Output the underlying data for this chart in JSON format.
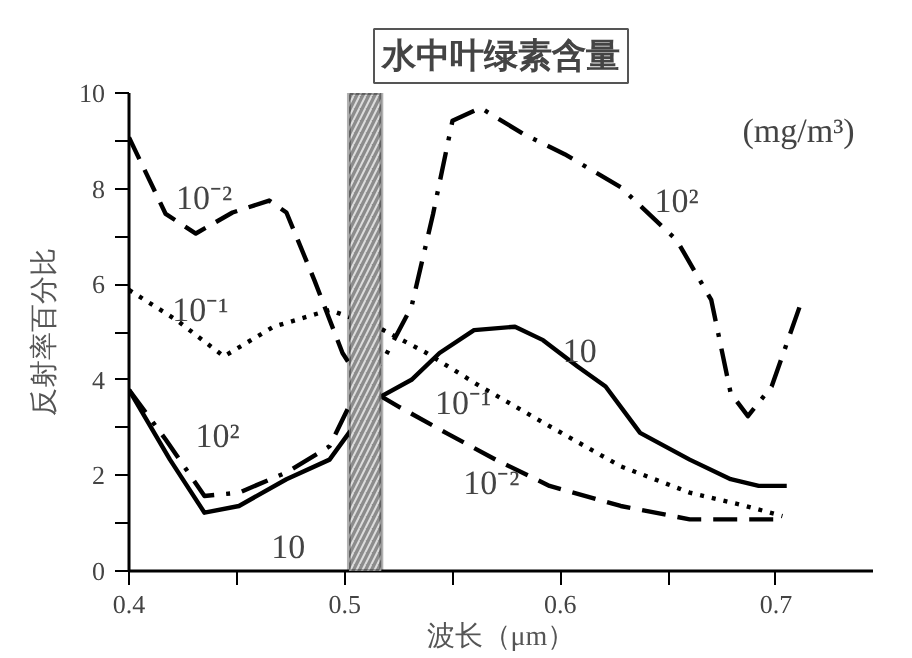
{
  "chart_data": {
    "type": "line",
    "title": "水中叶绿素含量",
    "xlabel": "波长（μm）",
    "ylabel": "反射率百分比",
    "xlim": [
      0.4,
      0.745
    ],
    "ylim": [
      0,
      10
    ],
    "xticks": [
      {
        "value": 0.4,
        "label": "0.4"
      },
      {
        "value": 0.45,
        "label": null
      },
      {
        "value": 0.5,
        "label": "0.5"
      },
      {
        "value": 0.55,
        "label": null
      },
      {
        "value": 0.6,
        "label": "0.6"
      },
      {
        "value": 0.65,
        "label": null
      },
      {
        "value": 0.7,
        "label": "0.7"
      }
    ],
    "yticks": [
      0,
      {
        "value": 1,
        "label": null
      },
      2,
      {
        "value": 3,
        "label": null
      },
      4,
      {
        "value": 5,
        "label": null
      },
      6,
      {
        "value": 7,
        "label": null
      },
      8,
      {
        "value": 9,
        "label": null
      },
      10
    ],
    "grid": false,
    "marker": "none",
    "series": [
      {
        "color": "#000000",
        "line_style": "dashed",
        "x": [
          0.4,
          0.417,
          0.431,
          0.448,
          0.465,
          0.473,
          0.486,
          0.499,
          0.509,
          0.525,
          0.547,
          0.57,
          0.595,
          0.628,
          0.66,
          0.702
        ],
        "values": [
          9.07,
          7.47,
          7.06,
          7.5,
          7.75,
          7.5,
          6.08,
          4.56,
          3.86,
          3.44,
          2.89,
          2.33,
          1.78,
          1.36,
          1.08,
          1.08
        ]
      },
      {
        "color": "#000000",
        "line_style": "dotted",
        "x": [
          0.4,
          0.422,
          0.444,
          0.467,
          0.493,
          0.515,
          0.538,
          0.563,
          0.595,
          0.628,
          0.66,
          0.686,
          0.703
        ],
        "values": [
          5.88,
          5.25,
          4.49,
          5.11,
          5.46,
          5.11,
          4.56,
          3.86,
          3.03,
          2.19,
          1.64,
          1.36,
          1.15
        ]
      },
      {
        "color": "#000000",
        "line_style": "solid",
        "x": [
          0.4,
          0.419,
          0.435,
          0.451,
          0.473,
          0.493,
          0.502,
          0.514,
          0.531,
          0.544,
          0.56,
          0.579,
          0.592,
          0.608,
          0.621,
          0.637,
          0.66,
          0.679,
          0.692,
          0.705
        ],
        "values": [
          3.79,
          2.33,
          1.22,
          1.36,
          1.92,
          2.33,
          2.89,
          3.58,
          4.0,
          4.56,
          5.04,
          5.11,
          4.83,
          4.28,
          3.86,
          2.89,
          2.33,
          1.92,
          1.78,
          1.78
        ]
      },
      {
        "color": "#000000",
        "line_style": "dashdot",
        "x": [
          0.4,
          0.417,
          0.435,
          0.451,
          0.473,
          0.493,
          0.505,
          0.518,
          0.531,
          0.541,
          0.55,
          0.563,
          0.583,
          0.602,
          0.628,
          0.654,
          0.67,
          0.679,
          0.687,
          0.698,
          0.711
        ],
        "values": [
          3.79,
          2.75,
          1.57,
          1.64,
          2.06,
          2.61,
          3.72,
          4.42,
          5.53,
          7.47,
          9.42,
          9.69,
          9.14,
          8.72,
          8.03,
          6.92,
          5.67,
          3.72,
          3.24,
          3.86,
          5.53
        ]
      }
    ],
    "bands": [
      {
        "axis": "x",
        "from": 0.502,
        "to": 0.517,
        "color": "#8c8c8c"
      }
    ],
    "annotations": [
      "10⁻²",
      "10⁻¹",
      "10²",
      "10",
      "10⁻¹",
      "10⁻²",
      "10",
      "10²",
      "(mg/m³)"
    ]
  }
}
